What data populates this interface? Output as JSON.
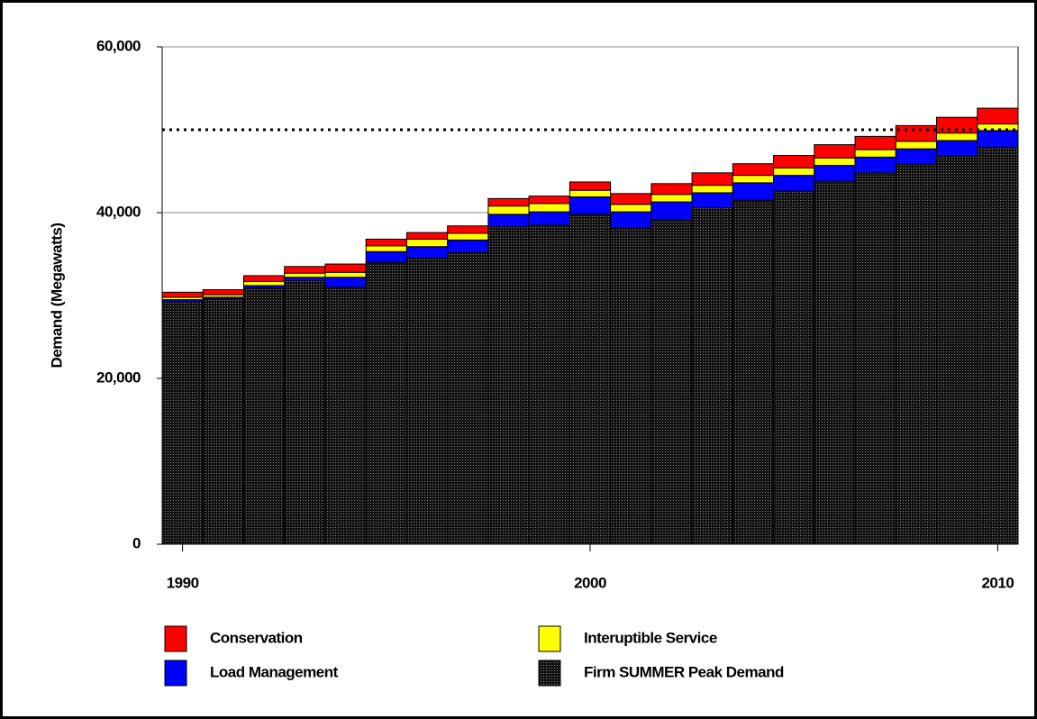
{
  "chart_data": {
    "type": "stacked-bar",
    "y_label": "Demand (Megawatts)",
    "x": [
      1990,
      1991,
      1992,
      1993,
      1994,
      1995,
      1996,
      1997,
      1998,
      1999,
      2000,
      2001,
      2002,
      2003,
      2004,
      2005,
      2006,
      2007,
      2008,
      2009,
      2010
    ],
    "series": [
      {
        "name": "Firm SUMMER Peak Demand",
        "color": "#2a2a2a",
        "values": [
          29300,
          29600,
          30900,
          31800,
          31000,
          34000,
          34500,
          35200,
          38300,
          38500,
          39800,
          38200,
          39200,
          40600,
          41500,
          42600,
          43800,
          44800,
          45800,
          46800,
          47900
        ]
      },
      {
        "name": "Load Management",
        "color": "#0000ff",
        "values": [
          200,
          200,
          300,
          400,
          1200,
          1300,
          1400,
          1500,
          1500,
          1600,
          2100,
          1900,
          2100,
          1800,
          2100,
          1900,
          1900,
          1900,
          1900,
          1900,
          2000
        ]
      },
      {
        "name": "Interuptible Service",
        "color": "#ffff00",
        "values": [
          300,
          300,
          500,
          500,
          600,
          700,
          900,
          800,
          1000,
          1000,
          800,
          900,
          900,
          900,
          900,
          900,
          900,
          900,
          900,
          900,
          800
        ]
      },
      {
        "name": "Conservation",
        "color": "#ff0000",
        "values": [
          600,
          600,
          700,
          800,
          1000,
          800,
          800,
          900,
          900,
          900,
          1000,
          1300,
          1300,
          1500,
          1400,
          1500,
          1600,
          1600,
          1900,
          1900,
          1900
        ]
      }
    ],
    "xlim": [
      1989.5,
      2010.5
    ],
    "xticks": [
      1990,
      2000,
      2010
    ],
    "ylim": [
      0,
      60000
    ],
    "yticks": [
      0,
      {
        "value": 20000,
        "label": "20,000"
      },
      {
        "value": 40000,
        "label": "40,000"
      },
      {
        "value": 60000,
        "label": "60,000"
      }
    ],
    "grid": true,
    "reference_line": 50000
  }
}
